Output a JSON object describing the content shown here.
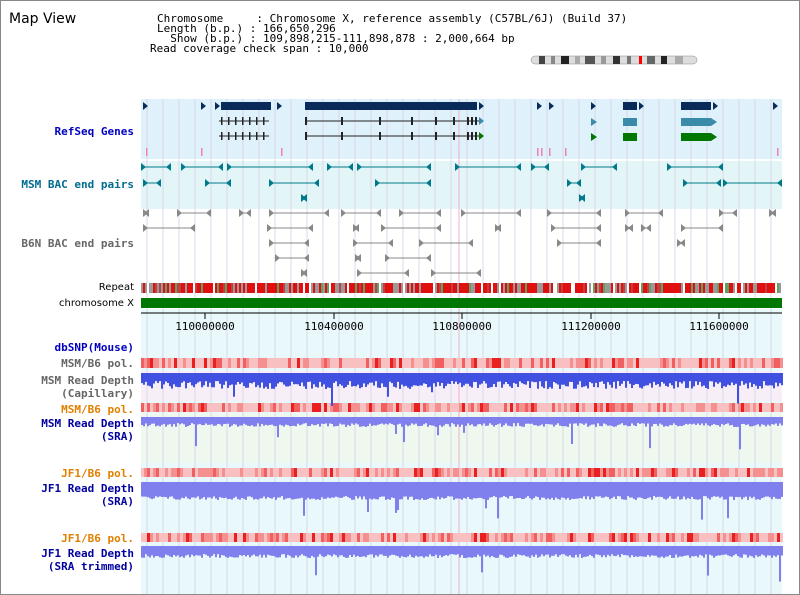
{
  "header": {
    "title": "Map View",
    "chromosome_line": "Chromosome     : Chromosome X, reference assembly (C57BL/6J) (Build 37)",
    "length_line": "Length (b.p.) : 166,650,296",
    "show_line": "  Show (b.p.) : 109,898,215-111,898,878 : 2,000,664 bp",
    "coverage_line": "Read coverage check span : 10,000"
  },
  "tracks": {
    "refseq": "RefSeq Genes",
    "msm_bac": "MSM BAC end pairs",
    "b6n_bac": "B6N BAC end pairs",
    "repeat": "Repeat",
    "chromosome": "chromosome X",
    "dbsnp": "dbSNP(Mouse)",
    "msm_b6_pol_1": "MSM/B6 pol.",
    "msm_read_depth_cap_1": "MSM Read Depth",
    "msm_read_depth_cap_2": "(Capillary)",
    "msm_b6_pol_2": "MSM/B6 pol.",
    "msm_read_depth_sra_1": "MSM Read Depth",
    "msm_read_depth_sra_2": "(SRA)",
    "jf1_b6_pol_1": "JF1/B6 pol.",
    "jf1_read_depth_sra_1": "JF1 Read Depth",
    "jf1_read_depth_sra_2": "(SRA)",
    "jf1_b6_pol_2": "JF1/B6 pol.",
    "jf1_read_depth_trim_1": "JF1 Read Depth",
    "jf1_read_depth_trim_2": "(SRA trimmed)"
  },
  "ruler": {
    "ticks": [
      "110000000",
      "110400000",
      "110800000",
      "111200000",
      "111600000"
    ]
  },
  "colors": {
    "refseq_label": "#0000c0",
    "msm_bac_label": "#006d8f",
    "b6n_bac_label": "#666666",
    "pol_label_orange": "#e08000",
    "depth_label_blue": "#0000a0",
    "gene_dark": "#0a2a5a",
    "gene_teal": "#3a8aaa",
    "gene_green": "#007700",
    "msm_bac": "#007a8a",
    "chromosome_bar": "#007700"
  }
}
